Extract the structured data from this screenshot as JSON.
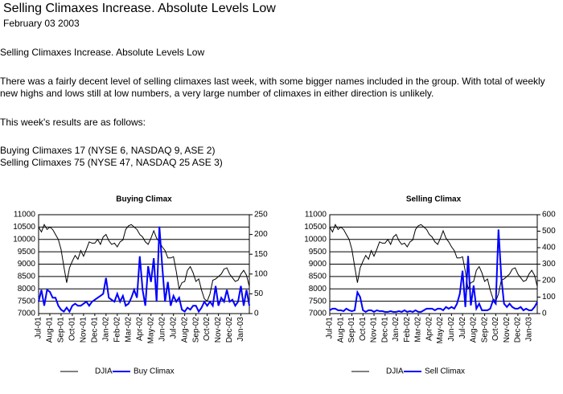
{
  "document": {
    "title": "Selling Climaxes Increase. Absolute Levels Low",
    "date": "February 03 2003",
    "heading": "Selling Climaxes Increase. Absolute Levels Low",
    "paragraph": "There was a fairly decent level of selling climaxes last week, with some bigger names included in the group. With total of weekly new highs and lows still at low numbers, a very large number of climaxes in either direction is unlikely.",
    "intro": "This week's results are as follows:",
    "results": [
      "Buying Climaxes 17 (NYSE 6, NASDAQ 9, ASE 2)",
      "Selling Climaxes 75 (NYSE 47, NASDAQ 25 ASE 3)"
    ]
  },
  "chart_data": [
    {
      "type": "line",
      "title": "Buying Climax",
      "categories": [
        "Jul-01",
        null,
        null,
        null,
        "Aug-01",
        null,
        null,
        null,
        "Sep-01",
        null,
        null,
        null,
        "Oct-01",
        null,
        null,
        null,
        "Nov-01",
        null,
        null,
        null,
        "Dec-01",
        null,
        null,
        null,
        "Jan-02",
        null,
        null,
        null,
        "Feb-02",
        null,
        null,
        null,
        "Mar-02",
        null,
        null,
        null,
        "Apr-02",
        null,
        null,
        null,
        "May-02",
        null,
        null,
        null,
        "Jun-02",
        null,
        null,
        null,
        "Jul-02",
        null,
        null,
        null,
        "Aug-02",
        null,
        null,
        null,
        "Sep-02",
        null,
        null,
        null,
        "Oct-02",
        null,
        null,
        null,
        "Nov-02",
        null,
        null,
        null,
        "Dec-02",
        null,
        null,
        null,
        "Jan-03",
        null,
        null,
        null
      ],
      "series": [
        {
          "name": "DJIA",
          "color": "#000000",
          "values": [
            10500,
            10300,
            10600,
            10400,
            10500,
            10400,
            10200,
            10000,
            9600,
            8900,
            8250,
            8850,
            9120,
            9350,
            9200,
            9550,
            9320,
            9600,
            9900,
            9850,
            9850,
            10000,
            9800,
            10100,
            10200,
            9950,
            9800,
            9850,
            9700,
            9900,
            9980,
            10400,
            10550,
            10600,
            10500,
            10400,
            10200,
            10100,
            9900,
            9800,
            10050,
            10350,
            10050,
            9900,
            9700,
            9550,
            9250,
            9250,
            9300,
            8700,
            8000,
            8250,
            8300,
            8750,
            8900,
            8650,
            8300,
            8400,
            7950,
            7600,
            7500,
            7800,
            8350,
            8400,
            8500,
            8600,
            8800,
            8850,
            8600,
            8450,
            8300,
            8350,
            8600,
            8750,
            8550,
            8100
          ]
        },
        {
          "name": "Buy Climax",
          "color": "#0000ff",
          "axis": "y2",
          "values": [
            30,
            60,
            20,
            60,
            55,
            40,
            40,
            20,
            10,
            5,
            15,
            5,
            20,
            25,
            20,
            20,
            25,
            30,
            20,
            30,
            35,
            40,
            45,
            50,
            90,
            40,
            35,
            30,
            50,
            30,
            45,
            20,
            25,
            40,
            60,
            40,
            145,
            60,
            20,
            120,
            80,
            140,
            30,
            220,
            120,
            30,
            80,
            20,
            45,
            30,
            40,
            10,
            5,
            15,
            10,
            20,
            20,
            5,
            15,
            30,
            20,
            30,
            20,
            70,
            20,
            40,
            30,
            60,
            30,
            35,
            20,
            30,
            70,
            20,
            60,
            20
          ]
        }
      ],
      "ylim": [
        7000,
        11000
      ],
      "yticks": [
        7000,
        7500,
        8000,
        8500,
        9000,
        9500,
        10000,
        10500,
        11000
      ],
      "y2lim": [
        0,
        250
      ],
      "y2ticks": [
        0,
        50,
        100,
        150,
        200,
        250
      ],
      "grid": true,
      "legend": "bottom"
    },
    {
      "type": "line",
      "title": "Selling Climax",
      "categories": [
        "Jul-01",
        null,
        null,
        null,
        "Aug-01",
        null,
        null,
        null,
        "Sep-01",
        null,
        null,
        null,
        "Oct-01",
        null,
        null,
        null,
        "Nov-01",
        null,
        null,
        null,
        "Dec-01",
        null,
        null,
        null,
        "Jan-02",
        null,
        null,
        null,
        "Feb-02",
        null,
        null,
        null,
        "Mar-02",
        null,
        null,
        null,
        "Apr-02",
        null,
        null,
        null,
        "May-02",
        null,
        null,
        null,
        "Jun-02",
        null,
        null,
        null,
        "Jul-02",
        null,
        null,
        null,
        "Aug-02",
        null,
        null,
        null,
        "Sep-02",
        null,
        null,
        null,
        "Oct-02",
        null,
        null,
        null,
        "Nov-02",
        null,
        null,
        null,
        "Dec-02",
        null,
        null,
        null,
        "Jan-03",
        null,
        null,
        null
      ],
      "series": [
        {
          "name": "DJIA",
          "color": "#000000",
          "values": [
            10500,
            10300,
            10600,
            10400,
            10500,
            10400,
            10200,
            10000,
            9600,
            8900,
            8250,
            8850,
            9120,
            9350,
            9200,
            9550,
            9320,
            9600,
            9900,
            9850,
            9850,
            10000,
            9800,
            10100,
            10200,
            9950,
            9800,
            9850,
            9700,
            9900,
            9980,
            10400,
            10550,
            10600,
            10500,
            10400,
            10200,
            10100,
            9900,
            9800,
            10050,
            10350,
            10050,
            9900,
            9700,
            9550,
            9250,
            9250,
            9300,
            8700,
            8000,
            8250,
            8300,
            8750,
            8900,
            8650,
            8300,
            8400,
            7950,
            7600,
            7500,
            7800,
            8350,
            8400,
            8500,
            8600,
            8800,
            8850,
            8600,
            8450,
            8300,
            8350,
            8600,
            8750,
            8550,
            8100
          ]
        },
        {
          "name": "Sell Climax",
          "color": "#0000ff",
          "axis": "y2",
          "values": [
            20,
            30,
            30,
            20,
            20,
            15,
            30,
            20,
            15,
            20,
            130,
            100,
            20,
            10,
            20,
            20,
            10,
            20,
            15,
            15,
            10,
            10,
            15,
            10,
            10,
            15,
            10,
            20,
            10,
            15,
            10,
            20,
            10,
            10,
            20,
            30,
            30,
            30,
            20,
            30,
            30,
            20,
            40,
            30,
            40,
            30,
            60,
            120,
            260,
            40,
            350,
            50,
            170,
            30,
            60,
            20,
            20,
            20,
            30,
            80,
            60,
            510,
            220,
            60,
            40,
            60,
            40,
            30,
            30,
            40,
            20,
            30,
            20,
            20,
            40,
            70
          ]
        }
      ],
      "ylim": [
        7000,
        11000
      ],
      "yticks": [
        7000,
        7500,
        8000,
        8500,
        9000,
        9500,
        10000,
        10500,
        11000
      ],
      "y2lim": [
        0,
        600
      ],
      "y2ticks": [
        0,
        100,
        200,
        300,
        400,
        500,
        600
      ],
      "grid": true,
      "legend": "bottom"
    }
  ]
}
